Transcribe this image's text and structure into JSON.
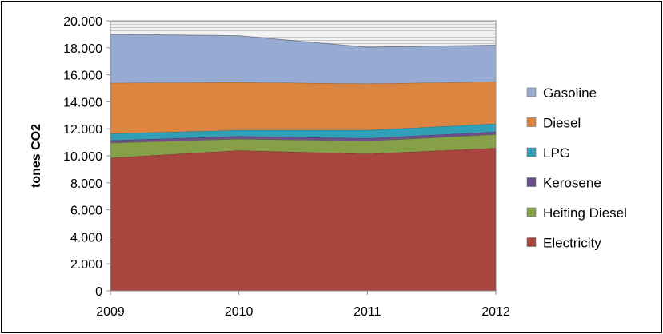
{
  "chart_data": {
    "type": "area",
    "stacked": true,
    "title": "",
    "xlabel": "",
    "ylabel": "tones CO2",
    "x": [
      "2009",
      "2010",
      "2011",
      "2012"
    ],
    "ylim": [
      0,
      20000
    ],
    "yticks": [
      "0",
      "2.000",
      "4.000",
      "6.000",
      "8.000",
      "10.000",
      "12.000",
      "14.000",
      "16.000",
      "18.000",
      "20.000"
    ],
    "grid": "horizontal",
    "legend_position": "right",
    "series": [
      {
        "name": "Electricity",
        "color": "#A9453F",
        "values": [
          9850,
          10400,
          10150,
          10580
        ]
      },
      {
        "name": "Heiting Diesel",
        "color": "#85A046",
        "values": [
          1100,
          850,
          950,
          1000
        ]
      },
      {
        "name": "Kerosene",
        "color": "#6D4F8E",
        "values": [
          200,
          200,
          200,
          200
        ]
      },
      {
        "name": "LPG",
        "color": "#31A0B6",
        "values": [
          500,
          450,
          600,
          600
        ]
      },
      {
        "name": "Diesel",
        "color": "#DB8540",
        "values": [
          3750,
          3550,
          3450,
          3120
        ]
      },
      {
        "name": "Gasoline",
        "color": "#97ABD2",
        "values": [
          3600,
          3450,
          2700,
          2700
        ]
      }
    ],
    "legend_order": [
      "Gasoline",
      "Diesel",
      "LPG",
      "Kerosene",
      "Heiting Diesel",
      "Electricity"
    ]
  }
}
